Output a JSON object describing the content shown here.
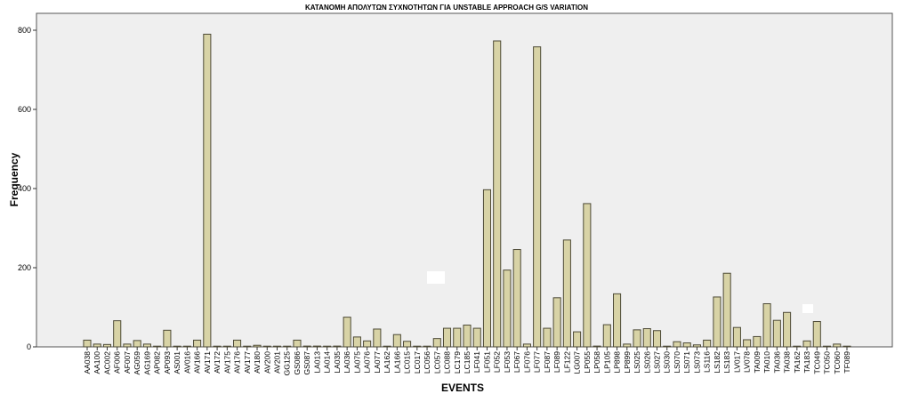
{
  "chart_data": {
    "type": "bar",
    "title": "ΚΑΤΑΝΟΜΗ ΑΠΟΛΥΤΩΝ ΣΥΧΝΟΤΗΤΩΝ ΓΙΑ UNSTABLE APPROACH G/S VARIATION",
    "xlabel": "EVENTS",
    "ylabel": "Frequency",
    "ylim": [
      0,
      850
    ],
    "yticks": [
      0,
      200,
      400,
      600,
      800
    ],
    "grid": false,
    "legend": "none",
    "colors": {
      "bar_fill": "#d8d3a6",
      "bar_stroke": "#4d4a36",
      "plot_background": "#efefef"
    },
    "categories": [
      "AA038",
      "AA100",
      "AC002",
      "AF006",
      "AF007",
      "AG059",
      "AG169",
      "AP082",
      "AP093",
      "AS001",
      "AV016",
      "AV166",
      "AV171",
      "AV172",
      "AV175",
      "AV176",
      "AV177",
      "AV180",
      "AV200",
      "AV201",
      "GG125",
      "GS086",
      "GS087",
      "LA013",
      "LA014",
      "LA035",
      "LA036",
      "LA075",
      "LA076",
      "LA077",
      "LA162",
      "LA166",
      "LC015",
      "LC017",
      "LC056",
      "LC057",
      "LC088",
      "LC179",
      "LC185",
      "LF041",
      "LF051",
      "LF052",
      "LF053",
      "LF067",
      "LF076",
      "LF077",
      "LF087",
      "LF089",
      "LF122",
      "LG007",
      "LP055",
      "LP058",
      "LP105",
      "LP898",
      "LP899",
      "LS025",
      "LS026",
      "LS027",
      "LS030",
      "LS070",
      "LS071",
      "LS073",
      "LS116",
      "LS182",
      "LS183",
      "LV017",
      "LV078",
      "TA009",
      "TA010",
      "TA036",
      "TA038",
      "TA162",
      "TA183",
      "TC049",
      "TC050",
      "TC060",
      "TF089"
    ],
    "values": [
      17,
      7,
      6,
      66,
      7,
      16,
      7,
      1,
      42,
      1,
      1,
      17,
      790,
      1,
      1,
      17,
      1,
      4,
      1,
      1,
      1,
      17,
      2,
      2,
      1,
      2,
      75,
      25,
      15,
      45,
      1,
      31,
      14,
      1,
      1,
      21,
      47,
      47,
      55,
      47,
      397,
      773,
      194,
      246,
      7,
      758,
      47,
      124,
      270,
      38,
      362,
      2,
      56,
      134,
      7,
      43,
      46,
      41,
      1,
      13,
      10,
      5,
      17,
      126,
      186,
      49,
      18,
      26,
      109,
      67,
      87,
      1,
      15,
      64,
      1,
      7,
      1
    ]
  }
}
